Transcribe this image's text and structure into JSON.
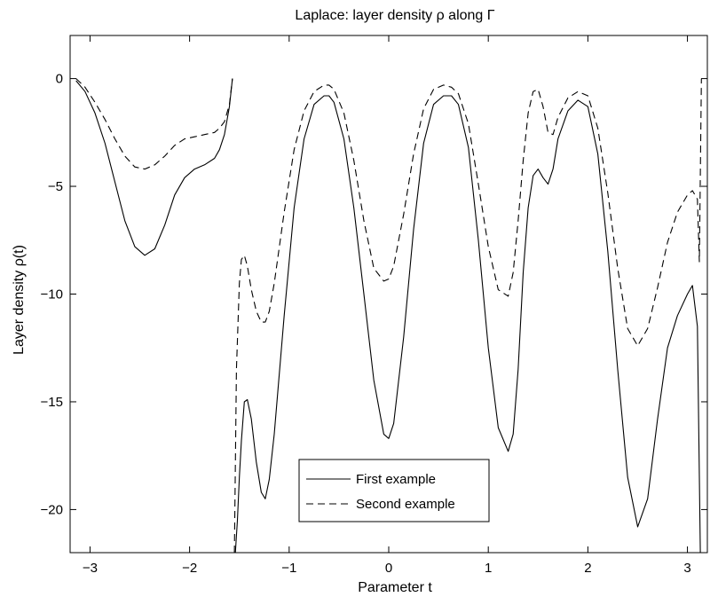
{
  "chart_data": {
    "type": "line",
    "title": "Laplace: layer density ρ along Γ",
    "xlabel": "Parameter t",
    "ylabel": "Layer density ρ(t)",
    "xlim": [
      -3.2,
      3.2
    ],
    "ylim": [
      -22,
      2
    ],
    "xticks": [
      -3,
      -2,
      -1,
      0,
      1,
      2,
      3
    ],
    "yticks": [
      0,
      -5,
      -10,
      -15,
      -20
    ],
    "grid": false,
    "legend_position": "bottom-center",
    "series": [
      {
        "name": "First example",
        "style": "solid",
        "segments": [
          {
            "x": [
              -3.14,
              -3.05,
              -2.95,
              -2.85,
              -2.75,
              -2.65,
              -2.55,
              -2.45,
              -2.35,
              -2.25,
              -2.15,
              -2.05,
              -1.95,
              -1.85,
              -1.75,
              -1.7,
              -1.65,
              -1.6,
              -1.57
            ],
            "y": [
              -0.1,
              -0.6,
              -1.6,
              -3.0,
              -4.8,
              -6.6,
              -7.8,
              -8.2,
              -7.9,
              -6.8,
              -5.4,
              -4.6,
              -4.2,
              -4.0,
              -3.7,
              -3.3,
              -2.6,
              -1.3,
              0.0
            ]
          },
          {
            "x": [
              -1.54,
              -1.52,
              -1.5,
              -1.48,
              -1.45,
              -1.42,
              -1.38,
              -1.33,
              -1.28,
              -1.24,
              -1.2,
              -1.15,
              -1.05,
              -0.95,
              -0.85,
              -0.75,
              -0.65,
              -0.6,
              -0.55,
              -0.45,
              -0.35,
              -0.25,
              -0.15,
              -0.05,
              0.0,
              0.05,
              0.15,
              0.25,
              0.35,
              0.45,
              0.55,
              0.63,
              0.7,
              0.8,
              0.9,
              1.0,
              1.1,
              1.2,
              1.25,
              1.3,
              1.35,
              1.4,
              1.45,
              1.5,
              1.55,
              1.6,
              1.65,
              1.7,
              1.8,
              1.9,
              2.0,
              2.1,
              2.2,
              2.3,
              2.4,
              2.5,
              2.6,
              2.7,
              2.8,
              2.9,
              3.0,
              3.05,
              3.1,
              3.13
            ],
            "y": [
              -22,
              -20.5,
              -18.5,
              -16.8,
              -15.0,
              -14.9,
              -15.8,
              -17.8,
              -19.2,
              -19.5,
              -18.6,
              -16.5,
              -11.0,
              -6.0,
              -2.8,
              -1.2,
              -0.8,
              -0.8,
              -1.1,
              -2.8,
              -6.0,
              -10.0,
              -14.0,
              -16.5,
              -16.7,
              -16.0,
              -12.0,
              -7.0,
              -3.0,
              -1.2,
              -0.8,
              -0.8,
              -1.2,
              -3.2,
              -7.5,
              -12.5,
              -16.2,
              -17.3,
              -16.5,
              -13.5,
              -9.0,
              -6.0,
              -4.5,
              -4.2,
              -4.6,
              -4.9,
              -4.2,
              -2.8,
              -1.5,
              -1.0,
              -1.3,
              -3.5,
              -8.0,
              -13.5,
              -18.5,
              -20.8,
              -19.5,
              -15.8,
              -12.5,
              -11.0,
              -10.0,
              -9.6,
              -11.5,
              -22
            ]
          }
        ]
      },
      {
        "name": "Second example",
        "style": "dashed",
        "segments": [
          {
            "x": [
              -3.14,
              -3.05,
              -2.95,
              -2.85,
              -2.75,
              -2.65,
              -2.55,
              -2.45,
              -2.35,
              -2.25,
              -2.15,
              -2.05,
              -1.95,
              -1.85,
              -1.75,
              -1.7,
              -1.65,
              -1.6,
              -1.57
            ],
            "y": [
              0.0,
              -0.4,
              -1.1,
              -1.9,
              -2.8,
              -3.6,
              -4.1,
              -4.2,
              -4.0,
              -3.6,
              -3.1,
              -2.8,
              -2.7,
              -2.6,
              -2.5,
              -2.3,
              -2.0,
              -1.2,
              0.0
            ]
          },
          {
            "x": [
              -1.55,
              -1.53,
              -1.5,
              -1.48,
              -1.45,
              -1.42,
              -1.38,
              -1.33,
              -1.28,
              -1.24,
              -1.2,
              -1.15,
              -1.05,
              -0.95,
              -0.85,
              -0.75,
              -0.65,
              -0.6,
              -0.55,
              -0.45,
              -0.35,
              -0.25,
              -0.15,
              -0.05,
              0.0,
              0.05,
              0.15,
              0.25,
              0.35,
              0.45,
              0.55,
              0.63,
              0.7,
              0.8,
              0.9,
              1.0,
              1.1,
              1.2,
              1.25,
              1.3,
              1.35,
              1.4,
              1.45,
              1.5,
              1.55,
              1.6,
              1.65,
              1.7,
              1.8,
              1.9,
              2.0,
              2.1,
              2.2,
              2.3,
              2.4,
              2.5,
              2.6,
              2.7,
              2.8,
              2.9,
              3.0,
              3.05,
              3.1,
              3.12,
              3.14
            ],
            "y": [
              -22,
              -13.5,
              -9.5,
              -8.4,
              -8.2,
              -8.7,
              -9.8,
              -10.8,
              -11.3,
              -11.3,
              -10.8,
              -9.5,
              -6.2,
              -3.3,
              -1.5,
              -0.6,
              -0.3,
              -0.3,
              -0.5,
              -1.6,
              -3.8,
              -6.6,
              -8.8,
              -9.4,
              -9.3,
              -8.7,
              -6.3,
              -3.5,
              -1.4,
              -0.5,
              -0.3,
              -0.4,
              -0.7,
              -2.1,
              -4.9,
              -7.8,
              -9.8,
              -10.1,
              -9.0,
              -6.6,
              -3.8,
              -1.6,
              -0.6,
              -0.5,
              -1.3,
              -2.5,
              -2.6,
              -1.8,
              -0.9,
              -0.6,
              -0.8,
              -2.3,
              -5.3,
              -8.8,
              -11.6,
              -12.4,
              -11.6,
              -9.7,
              -7.6,
              -6.2,
              -5.4,
              -5.2,
              -5.6,
              -8.5,
              0.0
            ]
          }
        ]
      }
    ]
  }
}
